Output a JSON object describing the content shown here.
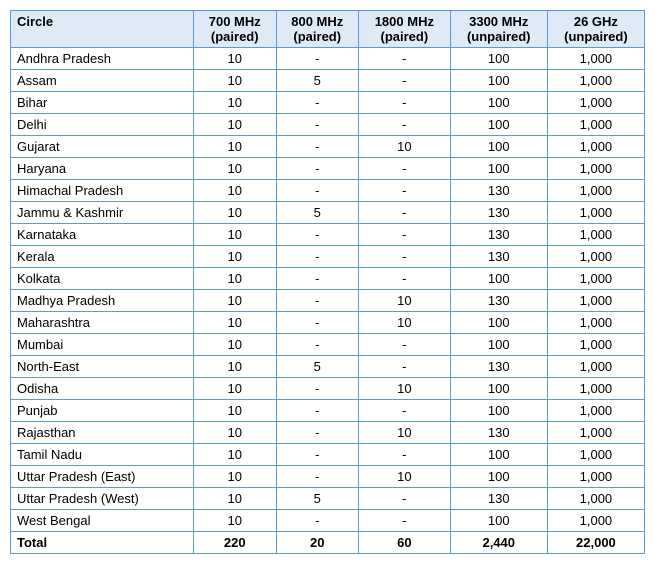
{
  "table": {
    "type": "table",
    "header_bg": "#deeaf6",
    "border_color": "#5b9bd5",
    "columns": [
      {
        "label_top": "Circle",
        "label_sub": ""
      },
      {
        "label_top": "700 MHz",
        "label_sub": "(paired)"
      },
      {
        "label_top": "800 MHz",
        "label_sub": "(paired)"
      },
      {
        "label_top": "1800 MHz",
        "label_sub": "(paired)"
      },
      {
        "label_top": "3300 MHz",
        "label_sub": "(unpaired)"
      },
      {
        "label_top": "26 GHz",
        "label_sub": "(unpaired)"
      }
    ],
    "rows": [
      {
        "circle": "Andhra Pradesh",
        "c700": "10",
        "c800": "-",
        "c1800": "-",
        "c3300": "100",
        "c26": "1,000"
      },
      {
        "circle": "Assam",
        "c700": "10",
        "c800": "5",
        "c1800": "-",
        "c3300": "100",
        "c26": "1,000"
      },
      {
        "circle": "Bihar",
        "c700": "10",
        "c800": "-",
        "c1800": "-",
        "c3300": "100",
        "c26": "1,000"
      },
      {
        "circle": "Delhi",
        "c700": "10",
        "c800": "-",
        "c1800": "-",
        "c3300": "100",
        "c26": "1,000"
      },
      {
        "circle": "Gujarat",
        "c700": "10",
        "c800": "-",
        "c1800": "10",
        "c3300": "100",
        "c26": "1,000"
      },
      {
        "circle": "Haryana",
        "c700": "10",
        "c800": "-",
        "c1800": "-",
        "c3300": "100",
        "c26": "1,000"
      },
      {
        "circle": "Himachal Pradesh",
        "c700": "10",
        "c800": "-",
        "c1800": "-",
        "c3300": "130",
        "c26": "1,000"
      },
      {
        "circle": "Jammu & Kashmir",
        "c700": "10",
        "c800": "5",
        "c1800": "-",
        "c3300": "130",
        "c26": "1,000"
      },
      {
        "circle": "Karnataka",
        "c700": "10",
        "c800": "-",
        "c1800": "-",
        "c3300": "130",
        "c26": "1,000"
      },
      {
        "circle": "Kerala",
        "c700": "10",
        "c800": "-",
        "c1800": "-",
        "c3300": "130",
        "c26": "1,000"
      },
      {
        "circle": "Kolkata",
        "c700": "10",
        "c800": "-",
        "c1800": "-",
        "c3300": "100",
        "c26": "1,000"
      },
      {
        "circle": "Madhya Pradesh",
        "c700": "10",
        "c800": "-",
        "c1800": "10",
        "c3300": "130",
        "c26": "1,000"
      },
      {
        "circle": "Maharashtra",
        "c700": "10",
        "c800": "-",
        "c1800": "10",
        "c3300": "100",
        "c26": "1,000"
      },
      {
        "circle": "Mumbai",
        "c700": "10",
        "c800": "-",
        "c1800": "-",
        "c3300": "100",
        "c26": "1,000"
      },
      {
        "circle": "North-East",
        "c700": "10",
        "c800": "5",
        "c1800": "-",
        "c3300": "130",
        "c26": "1,000"
      },
      {
        "circle": "Odisha",
        "c700": "10",
        "c800": "-",
        "c1800": "10",
        "c3300": "100",
        "c26": "1,000"
      },
      {
        "circle": "Punjab",
        "c700": "10",
        "c800": "-",
        "c1800": "-",
        "c3300": "100",
        "c26": "1,000"
      },
      {
        "circle": "Rajasthan",
        "c700": "10",
        "c800": "-",
        "c1800": "10",
        "c3300": "130",
        "c26": "1,000"
      },
      {
        "circle": "Tamil Nadu",
        "c700": "10",
        "c800": "-",
        "c1800": "-",
        "c3300": "100",
        "c26": "1,000"
      },
      {
        "circle": "Uttar Pradesh (East)",
        "c700": "10",
        "c800": "-",
        "c1800": "10",
        "c3300": "100",
        "c26": "1,000"
      },
      {
        "circle": "Uttar Pradesh (West)",
        "c700": "10",
        "c800": "5",
        "c1800": "-",
        "c3300": "130",
        "c26": "1,000"
      },
      {
        "circle": "West Bengal",
        "c700": "10",
        "c800": "-",
        "c1800": "-",
        "c3300": "100",
        "c26": "1,000"
      }
    ],
    "total": {
      "label": "Total",
      "c700": "220",
      "c800": "20",
      "c1800": "60",
      "c3300": "2,440",
      "c26": "22,000"
    }
  }
}
